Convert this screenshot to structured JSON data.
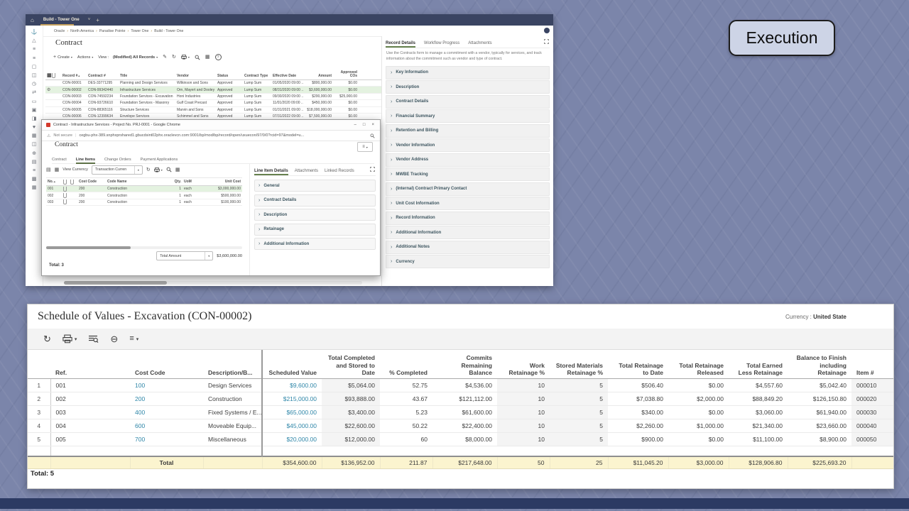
{
  "slide": {
    "execution_label": "Execution"
  },
  "main_window": {
    "app_bar": {
      "tab": "Build - Tower One"
    },
    "breadcrumb": [
      "Oracle",
      "North America",
      "Paradise Pointe",
      "Tower One",
      "Build - Tower One"
    ],
    "sidebar_icons": [
      "⚓",
      "△",
      "≡",
      "≡",
      "▢",
      "◫",
      "◷",
      "⇄",
      "▭",
      "▣",
      "◨",
      "♥",
      "▦",
      "◫",
      "⊕",
      "▤",
      "≡",
      "▩",
      "▦"
    ],
    "page_title": "Contract",
    "toolbar": {
      "create_label": "Create",
      "actions_label": "Actions",
      "view_label": "View :",
      "view_value": "(Modified) All Records"
    },
    "table": {
      "headers": [
        "Record #",
        "Contract #",
        "Title",
        "Vendor",
        "Status",
        "Contract Type",
        "Effective Date",
        "Amount",
        "Approved COs"
      ],
      "rows": [
        {
          "record": "CON-00001",
          "contract": "DES-33771295",
          "title": "Planning and Design Services",
          "vendor": "Wilkinson and Sons",
          "status": "Approved",
          "type": "Lump Sum",
          "date": "01/05/2020 09:00 ...",
          "amount": "$800,000.00",
          "cos": "$0.00",
          "selected": false
        },
        {
          "record": "CON-00002",
          "contract": "CON-99342440",
          "title": "Infrastructure Services",
          "vendor": "Orn, Mayert and Dooley",
          "status": "Approved",
          "type": "Lump Sum",
          "date": "08/31/2020 09:00 ...",
          "amount": "$3,600,000.00",
          "cos": "$0.00",
          "selected": true
        },
        {
          "record": "CON-00003",
          "contract": "CON-74592234",
          "title": "Foundation Services - Excavation",
          "vendor": "Honi Industries",
          "status": "Approved",
          "type": "Lump Sum",
          "date": "09/30/2020 09:00 ...",
          "amount": "$200,000.00",
          "cos": "$25,000.00",
          "selected": false
        },
        {
          "record": "CON-00004",
          "contract": "CON-93726610",
          "title": "Foundation Services - Masonry",
          "vendor": "Gulf Coast Precast",
          "status": "Approved",
          "type": "Lump Sum",
          "date": "11/01/2020 09:00 ...",
          "amount": "$450,000.00",
          "cos": "$0.00",
          "selected": false
        },
        {
          "record": "CON-00005",
          "contract": "CON-88365116",
          "title": "Structure Services",
          "vendor": "Marvin and Sons",
          "status": "Approved",
          "type": "Lump Sum",
          "date": "01/31/2021 09:00 ...",
          "amount": "$18,000,000.00",
          "cos": "$0.00",
          "selected": false
        },
        {
          "record": "CON-00006",
          "contract": "CON-12399634",
          "title": "Envelope Services",
          "vendor": "Schimmel and Sons",
          "status": "Approved",
          "type": "Lump Sum",
          "date": "07/31/2022 09:00 ...",
          "amount": "$7,500,000.00",
          "cos": "$0.00",
          "selected": false
        }
      ]
    },
    "details_panel": {
      "tabs": [
        "Record Details",
        "Workflow Progress",
        "Attachments"
      ],
      "info": "Use the Contracts form to manage a commitment with a vendor, typically for services, and track information about the commitment such as vendor and type of contract.",
      "sections": [
        "Key Information",
        "Description",
        "Contract Details",
        "Financial Summary",
        "Retention and Billing",
        "Vendor Information",
        "Vendor Address",
        "MWBE Tracking",
        "(Internal) Contract Primary Contact",
        "Unit Cost Information",
        "Record Information",
        "Additional Information",
        "Additional Notes",
        "Currency"
      ]
    }
  },
  "popup": {
    "window_title": "Contract - Infrastructure Services - Project No. PRJ-0001 - Google Chrome",
    "security_label": "Not secure",
    "url": "cegbu-phx-389.snphxprshared1.gbucdsint02phx.oraclevcn.com:9001/bp/mod/bp/record/open/uxuecon/97/0/0?rcid=97&model=u...",
    "page_title": "Contract",
    "tabs": [
      "Contract",
      "Line Items",
      "Change Orders",
      "Payment Applications"
    ],
    "toolbar": {
      "view_currency_label": "View Currency",
      "currency_select_value": "Transaction Curren"
    },
    "line_items": {
      "headers": [
        "No.",
        "Cost Code",
        "Code Name",
        "Qty.",
        "UoM",
        "Unit Cost"
      ],
      "rows": [
        {
          "no": "001",
          "cost_code": "200",
          "code_name": "Construction",
          "qty": "1",
          "uom": "each",
          "unit_cost": "$3,000,000.00",
          "selected": true
        },
        {
          "no": "002",
          "cost_code": "200",
          "code_name": "Construction",
          "qty": "1",
          "uom": "each",
          "unit_cost": "$500,000.00",
          "selected": false
        },
        {
          "no": "003",
          "cost_code": "200",
          "code_name": "Construction",
          "qty": "1",
          "uom": "each",
          "unit_cost": "$100,000.00",
          "selected": false
        }
      ],
      "total_select_value": "Total Amount",
      "total_value": "$3,600,000.00",
      "count": "Total: 3"
    },
    "details_panel": {
      "tabs": [
        "Line Item Details",
        "Attachments",
        "Linked Records"
      ],
      "sections": [
        "General",
        "Contract Details",
        "Description",
        "Retainage",
        "Additional Information"
      ]
    }
  },
  "sov": {
    "title": "Schedule of Values - Excavation (CON-00002)",
    "currency_label": "Currency :",
    "currency_value": "United State",
    "headers": [
      "Ref.",
      "Cost Code",
      "Description/B...",
      "Scheduled Value",
      "Total Completed and Stored to Date",
      "% Completed",
      "Commits Remaining Balance",
      "Work Retainage %",
      "Stored Materials Retainage %",
      "Total Retainage to Date",
      "Total Retainage Released",
      "Total Earned Less Retainage",
      "Balance to Finish including Retainage",
      "Item #"
    ],
    "rows": [
      [
        "001",
        "100",
        "Design Services",
        "$9,600.00",
        "$5,064.00",
        "52.75",
        "$4,536.00",
        "10",
        "5",
        "$506.40",
        "$0.00",
        "$4,557.60",
        "$5,042.40",
        "000010"
      ],
      [
        "002",
        "200",
        "Construction",
        "$215,000.00",
        "$93,888.00",
        "43.67",
        "$121,112.00",
        "10",
        "5",
        "$7,038.80",
        "$2,000.00",
        "$88,849.20",
        "$126,150.80",
        "000020"
      ],
      [
        "003",
        "400",
        "Fixed Systems / E...",
        "$65,000.00",
        "$3,400.00",
        "5.23",
        "$61,600.00",
        "10",
        "5",
        "$340.00",
        "$0.00",
        "$3,060.00",
        "$61,940.00",
        "000030"
      ],
      [
        "004",
        "600",
        "Moveable Equip...",
        "$45,000.00",
        "$22,600.00",
        "50.22",
        "$22,400.00",
        "10",
        "5",
        "$2,260.00",
        "$1,000.00",
        "$21,340.00",
        "$23,660.00",
        "000040"
      ],
      [
        "005",
        "700",
        "Miscellaneous",
        "$20,000.00",
        "$12,000.00",
        "60",
        "$8,000.00",
        "10",
        "5",
        "$900.00",
        "$0.00",
        "$11,100.00",
        "$8,900.00",
        "000050"
      ]
    ],
    "total_row": {
      "label": "Total",
      "values": [
        "$354,600.00",
        "$136,952.00",
        "211.87",
        "$217,648.00",
        "50",
        "25",
        "$11,045.20",
        "$3,000.00",
        "$128,906.80",
        "$225,693.20",
        ""
      ]
    },
    "count": "Total: 5"
  }
}
